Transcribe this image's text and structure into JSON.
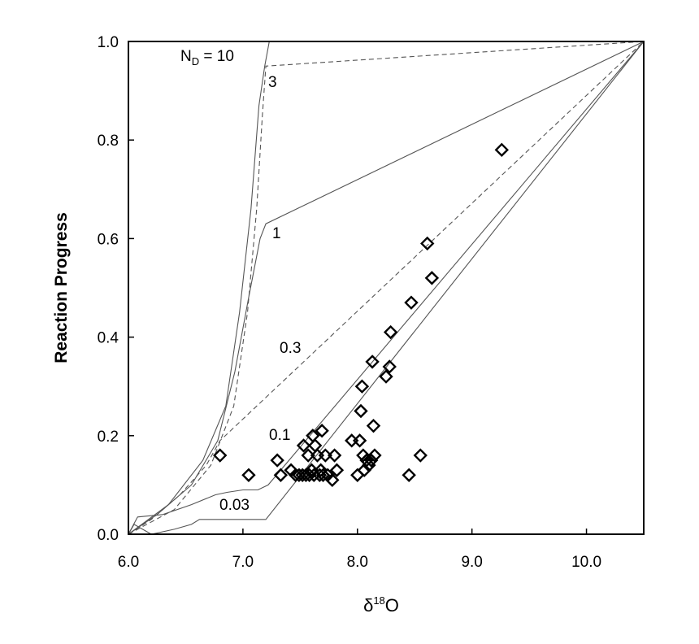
{
  "chart_data": {
    "type": "scatter",
    "title": "",
    "xlabel": "δ18O",
    "xlabel_base": "δ",
    "xlabel_sup": "18",
    "xlabel_tail": "O",
    "ylabel": "Reaction Progress",
    "xlim": [
      6.0,
      10.5
    ],
    "ylim": [
      0.0,
      1.0
    ],
    "x_ticks": [
      6.0,
      7.0,
      8.0,
      9.0,
      10.0
    ],
    "x_tick_labels": [
      "6.0",
      "7.0",
      "8.0",
      "9.0",
      "10.0"
    ],
    "y_ticks": [
      0.0,
      0.2,
      0.4,
      0.6,
      0.8,
      1.0
    ],
    "y_tick_labels": [
      "0.0",
      "0.2",
      "0.4",
      "0.6",
      "0.8",
      "1.0"
    ],
    "grid": false,
    "legend": "none",
    "marker": "open diamond",
    "points": [
      {
        "x": 6.8,
        "y": 0.16
      },
      {
        "x": 7.05,
        "y": 0.12
      },
      {
        "x": 7.3,
        "y": 0.15
      },
      {
        "x": 7.33,
        "y": 0.12
      },
      {
        "x": 7.42,
        "y": 0.13
      },
      {
        "x": 7.46,
        "y": 0.12
      },
      {
        "x": 7.49,
        "y": 0.12
      },
      {
        "x": 7.52,
        "y": 0.12
      },
      {
        "x": 7.53,
        "y": 0.18
      },
      {
        "x": 7.55,
        "y": 0.12
      },
      {
        "x": 7.57,
        "y": 0.16
      },
      {
        "x": 7.58,
        "y": 0.12
      },
      {
        "x": 7.6,
        "y": 0.13
      },
      {
        "x": 7.61,
        "y": 0.2
      },
      {
        "x": 7.62,
        "y": 0.12
      },
      {
        "x": 7.63,
        "y": 0.18
      },
      {
        "x": 7.65,
        "y": 0.16
      },
      {
        "x": 7.67,
        "y": 0.12
      },
      {
        "x": 7.68,
        "y": 0.13
      },
      {
        "x": 7.69,
        "y": 0.21
      },
      {
        "x": 7.7,
        "y": 0.12
      },
      {
        "x": 7.72,
        "y": 0.16
      },
      {
        "x": 7.74,
        "y": 0.12
      },
      {
        "x": 7.78,
        "y": 0.11
      },
      {
        "x": 7.8,
        "y": 0.16
      },
      {
        "x": 7.82,
        "y": 0.13
      },
      {
        "x": 7.95,
        "y": 0.19
      },
      {
        "x": 8.0,
        "y": 0.12
      },
      {
        "x": 8.02,
        "y": 0.19
      },
      {
        "x": 8.03,
        "y": 0.25
      },
      {
        "x": 8.04,
        "y": 0.3
      },
      {
        "x": 8.05,
        "y": 0.16
      },
      {
        "x": 8.06,
        "y": 0.13
      },
      {
        "x": 8.08,
        "y": 0.15
      },
      {
        "x": 8.1,
        "y": 0.14
      },
      {
        "x": 8.12,
        "y": 0.15
      },
      {
        "x": 8.13,
        "y": 0.35
      },
      {
        "x": 8.14,
        "y": 0.22
      },
      {
        "x": 8.15,
        "y": 0.16
      },
      {
        "x": 8.25,
        "y": 0.32
      },
      {
        "x": 8.28,
        "y": 0.34
      },
      {
        "x": 8.29,
        "y": 0.41
      },
      {
        "x": 8.45,
        "y": 0.12
      },
      {
        "x": 8.47,
        "y": 0.47
      },
      {
        "x": 8.55,
        "y": 0.16
      },
      {
        "x": 8.61,
        "y": 0.59
      },
      {
        "x": 8.65,
        "y": 0.52
      },
      {
        "x": 9.26,
        "y": 0.78
      }
    ],
    "curves": [
      {
        "name": "N_D = 10",
        "style": "solid",
        "label": "N",
        "label_sub": "D",
        "label_tail": " = 10",
        "x": [
          6.0,
          6.35,
          6.65,
          6.85,
          6.97,
          7.07,
          7.14,
          7.19,
          7.23,
          10.5
        ],
        "y": [
          0.0,
          0.06,
          0.15,
          0.26,
          0.45,
          0.66,
          0.87,
          0.95,
          1.0,
          1.0
        ]
      },
      {
        "name": "3",
        "style": "dashed",
        "label": "3",
        "x": [
          6.0,
          6.4,
          6.72,
          6.92,
          7.04,
          7.12,
          7.17,
          7.2,
          10.5
        ],
        "y": [
          0.0,
          0.05,
          0.14,
          0.26,
          0.45,
          0.66,
          0.85,
          0.95,
          1.0
        ]
      },
      {
        "name": "1",
        "style": "solid",
        "label": "1",
        "x": [
          6.0,
          6.25,
          6.55,
          6.78,
          6.93,
          7.05,
          7.15,
          7.2,
          10.5
        ],
        "y": [
          0.0,
          0.04,
          0.1,
          0.19,
          0.33,
          0.48,
          0.6,
          0.63,
          1.0
        ]
      },
      {
        "name": "0.3",
        "style": "dashed",
        "label": "0.3",
        "x": [
          6.0,
          6.2,
          6.45,
          6.68,
          6.8,
          10.5
        ],
        "y": [
          0.0,
          0.03,
          0.08,
          0.14,
          0.19,
          1.0
        ]
      },
      {
        "name": "0.1",
        "style": "solid",
        "label": "0.1",
        "x": [
          6.0,
          6.08,
          6.3,
          6.55,
          6.76,
          6.86,
          7.0,
          7.13,
          7.22,
          10.5
        ],
        "y": [
          0.0,
          0.035,
          0.04,
          0.06,
          0.08,
          0.085,
          0.09,
          0.09,
          0.1,
          1.0
        ]
      },
      {
        "name": "0.03",
        "style": "solid",
        "label": "0.03",
        "x": [
          6.0,
          6.05,
          6.2,
          6.4,
          6.55,
          6.62,
          6.85,
          7.2,
          10.5
        ],
        "y": [
          0.0,
          0.02,
          0.0,
          0.01,
          0.02,
          0.03,
          0.03,
          0.03,
          1.0
        ]
      }
    ]
  }
}
